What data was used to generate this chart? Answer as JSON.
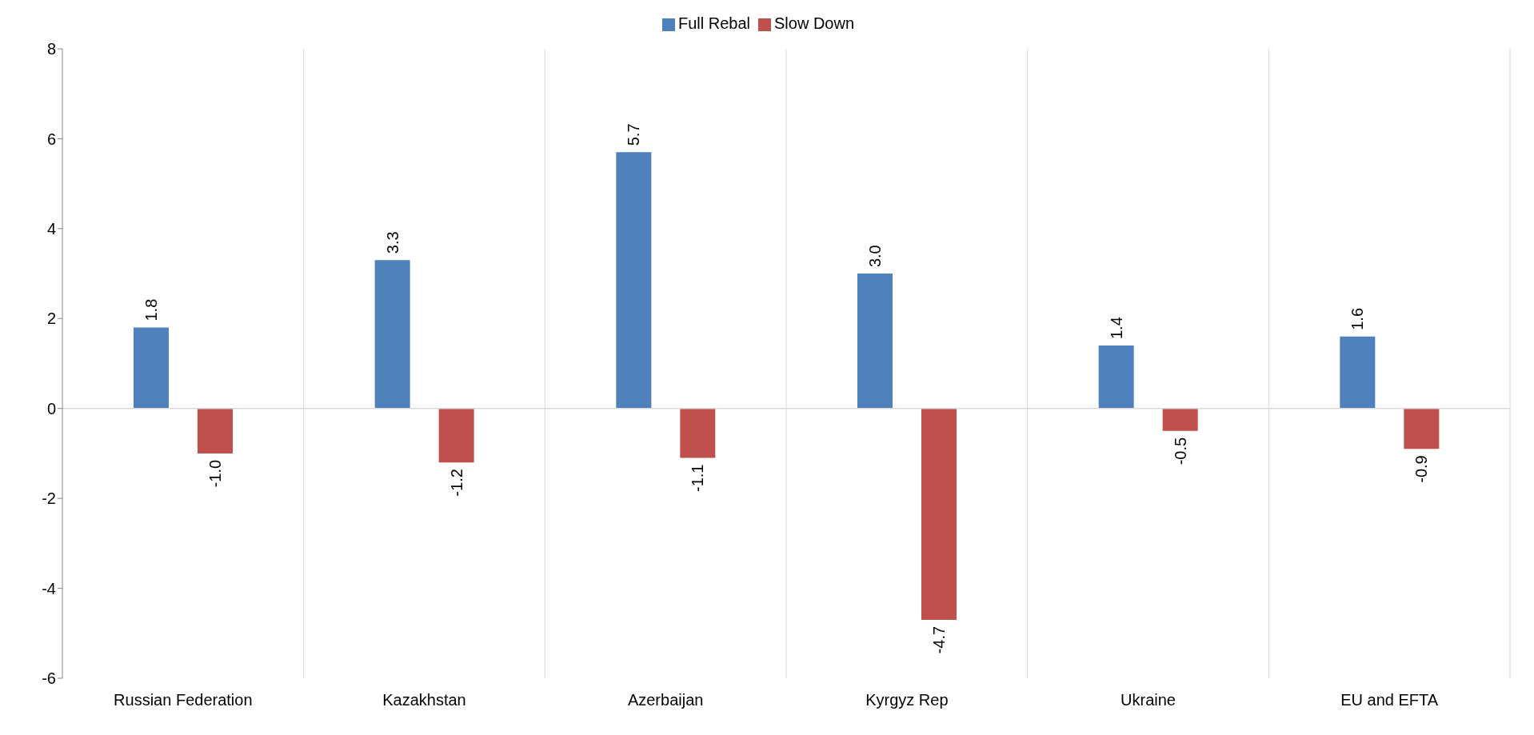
{
  "chart_data": {
    "type": "bar",
    "categories": [
      "Russian Federation",
      "Kazakhstan",
      "Azerbaijan",
      "Kyrgyz Rep",
      "Ukraine",
      "EU and EFTA"
    ],
    "series": [
      {
        "name": "Full Rebal",
        "color": "#4f81bd",
        "values": [
          1.8,
          3.3,
          5.7,
          3.0,
          1.4,
          1.6
        ],
        "value_labels": [
          "1.8",
          "3.3",
          "5.7",
          "3.0",
          "1.4",
          "1.6"
        ]
      },
      {
        "name": "Slow Down",
        "color": "#c0504d",
        "values": [
          -1.0,
          -1.2,
          -1.1,
          -4.7,
          -0.5,
          -0.9
        ],
        "value_labels": [
          "-1.0",
          "-1.2",
          "-1.1",
          "-4.7",
          "-0.5",
          "-0.9"
        ]
      }
    ],
    "ylim": [
      -6,
      8
    ],
    "yticks": [
      -6,
      -4,
      -2,
      0,
      2,
      4,
      6,
      8
    ],
    "grid": "x",
    "legend": "top"
  }
}
